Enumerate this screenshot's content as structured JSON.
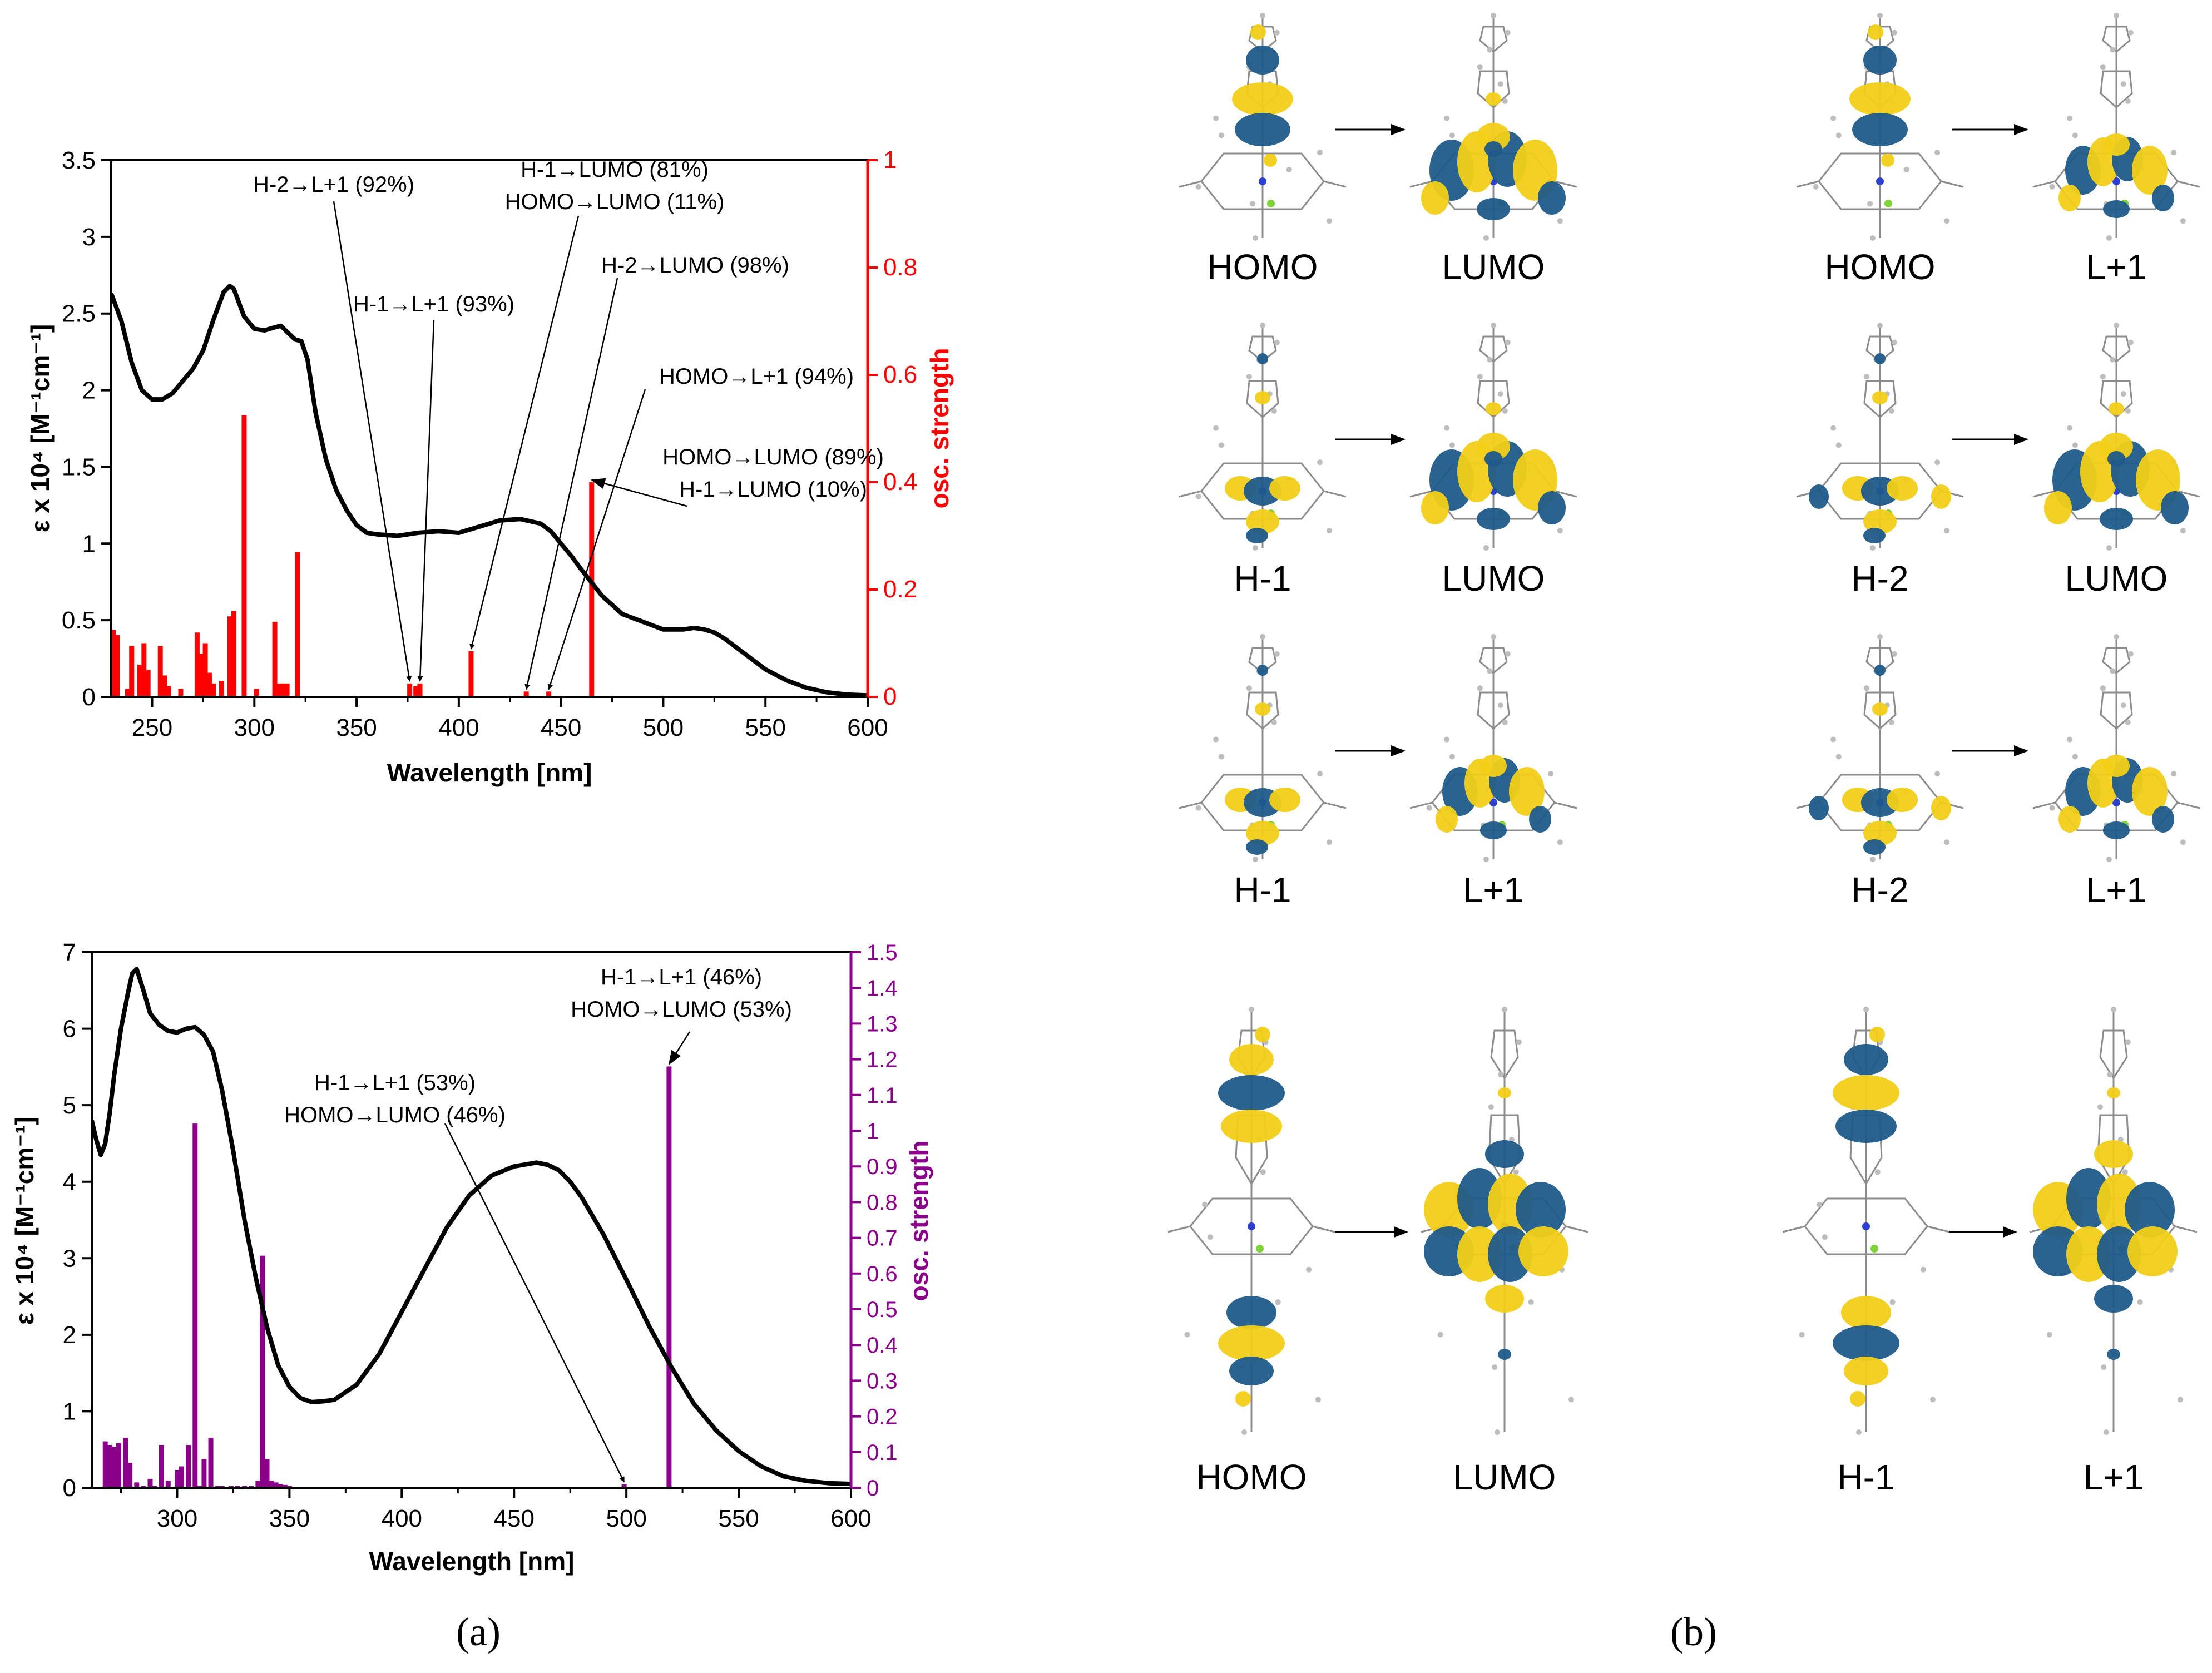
{
  "colors": {
    "absorbance": "#000000",
    "top_osc": "#ff0000",
    "bottom_osc": "#8b008b",
    "orbital_blue": "#1f5a8a",
    "orbital_yellow": "#f2cf18",
    "atom_grey": "#8c8c8c"
  },
  "chart_data": [
    {
      "type": "line",
      "panel": "top",
      "xlabel": "Wavelength [nm]",
      "ylabel": "ε x 10⁴ [M⁻¹cm⁻¹]",
      "y2label": "osc. strength",
      "xlim": [
        230,
        600
      ],
      "ylim": [
        0,
        3.5
      ],
      "y2lim": [
        0,
        1
      ],
      "xticks": [
        250,
        300,
        350,
        400,
        450,
        500,
        550,
        600
      ],
      "yticks": [
        "0",
        "0.5",
        "1",
        "1.5",
        "2",
        "2.5",
        "3",
        "3.5"
      ],
      "y2ticks": [
        "0",
        "0.2",
        "0.4",
        "0.6",
        "0.8",
        "1"
      ],
      "absorbance": {
        "x": [
          230,
          235,
          240,
          245,
          250,
          255,
          260,
          265,
          270,
          275,
          280,
          285,
          288,
          290,
          295,
          300,
          305,
          310,
          313,
          316,
          320,
          323,
          326,
          330,
          335,
          340,
          345,
          350,
          355,
          360,
          370,
          380,
          390,
          400,
          410,
          420,
          430,
          440,
          445,
          450,
          455,
          460,
          470,
          480,
          490,
          500,
          510,
          515,
          520,
          525,
          530,
          540,
          550,
          560,
          570,
          580,
          590,
          600
        ],
        "y": [
          2.63,
          2.45,
          2.18,
          2.0,
          1.94,
          1.94,
          1.98,
          2.06,
          2.14,
          2.26,
          2.46,
          2.64,
          2.68,
          2.66,
          2.48,
          2.4,
          2.39,
          2.41,
          2.42,
          2.38,
          2.33,
          2.32,
          2.2,
          1.85,
          1.55,
          1.35,
          1.22,
          1.12,
          1.07,
          1.06,
          1.05,
          1.07,
          1.08,
          1.07,
          1.11,
          1.15,
          1.16,
          1.13,
          1.08,
          1.0,
          0.92,
          0.83,
          0.66,
          0.54,
          0.49,
          0.44,
          0.44,
          0.45,
          0.44,
          0.42,
          0.38,
          0.28,
          0.18,
          0.11,
          0.06,
          0.03,
          0.015,
          0.01
        ]
      },
      "oscillator": {
        "x": [
          231,
          233,
          238,
          240,
          244,
          246,
          248,
          254,
          256,
          258,
          264,
          272,
          274,
          276,
          278,
          280,
          284,
          288,
          290,
          295,
          301,
          310,
          312,
          314,
          316,
          321,
          376,
          379,
          381,
          406,
          433,
          444,
          465
        ],
        "y": [
          0.125,
          0.115,
          0.015,
          0.095,
          0.06,
          0.1,
          0.05,
          0.095,
          0.04,
          0.02,
          0.015,
          0.12,
          0.08,
          0.1,
          0.045,
          0.025,
          0.03,
          0.15,
          0.16,
          0.525,
          0.015,
          0.14,
          0.025,
          0.025,
          0.025,
          0.27,
          0.025,
          0.02,
          0.025,
          0.085,
          0.01,
          0.01,
          0.4
        ]
      },
      "annotations": [
        {
          "lines": [
            "H-2→L+1 (92%)"
          ],
          "target_x": 376,
          "target_y": 0.025
        },
        {
          "lines": [
            "H-1→L+1 (93%)"
          ],
          "target_x": 381,
          "target_y": 0.025
        },
        {
          "lines": [
            "H-1→LUMO (81%)",
            "HOMO→LUMO (11%)"
          ],
          "target_x": 406,
          "target_y": 0.085
        },
        {
          "lines": [
            "H-2→LUMO (98%)"
          ],
          "target_x": 433,
          "target_y": 0.01
        },
        {
          "lines": [
            "HOMO→L+1 (94%)"
          ],
          "target_x": 444,
          "target_y": 0.01
        },
        {
          "lines": [
            "HOMO→LUMO (89%)",
            "H-1→LUMO (10%)"
          ],
          "target_x": 465,
          "target_y": 0.4
        }
      ]
    },
    {
      "type": "line",
      "panel": "bottom",
      "xlabel": "Wavelength [nm]",
      "ylabel": "ε x 10⁴ [M⁻¹cm⁻¹]",
      "y2label": "osc. strength",
      "xlim": [
        262,
        600
      ],
      "ylim": [
        0,
        7
      ],
      "y2lim": [
        0,
        1.5
      ],
      "xticks": [
        300,
        350,
        400,
        450,
        500,
        550,
        600
      ],
      "yticks": [
        "0",
        "1",
        "2",
        "3",
        "4",
        "5",
        "6",
        "7"
      ],
      "y2ticks": [
        "0",
        "0.1",
        "0.2",
        "0.3",
        "0.4",
        "0.5",
        "0.6",
        "0.7",
        "0.8",
        "0.9",
        "1",
        "1.1",
        "1.2",
        "1.3",
        "1.4",
        "1.5"
      ],
      "absorbance": {
        "x": [
          262,
          264,
          266,
          268,
          270,
          272,
          275,
          278,
          280,
          282,
          285,
          288,
          292,
          296,
          300,
          304,
          308,
          312,
          316,
          320,
          325,
          330,
          335,
          340,
          345,
          350,
          355,
          360,
          365,
          370,
          380,
          390,
          400,
          410,
          420,
          430,
          440,
          450,
          460,
          465,
          470,
          475,
          480,
          490,
          500,
          510,
          520,
          530,
          540,
          550,
          560,
          570,
          580,
          590,
          600
        ],
        "y": [
          4.8,
          4.55,
          4.35,
          4.5,
          4.9,
          5.4,
          6.0,
          6.45,
          6.72,
          6.78,
          6.5,
          6.2,
          6.05,
          5.97,
          5.95,
          6.0,
          6.02,
          5.92,
          5.7,
          5.2,
          4.4,
          3.5,
          2.75,
          2.1,
          1.6,
          1.32,
          1.17,
          1.12,
          1.13,
          1.15,
          1.35,
          1.75,
          2.3,
          2.85,
          3.4,
          3.82,
          4.08,
          4.2,
          4.25,
          4.22,
          4.15,
          4.0,
          3.8,
          3.3,
          2.72,
          2.12,
          1.58,
          1.1,
          0.75,
          0.48,
          0.28,
          0.15,
          0.09,
          0.06,
          0.05
        ]
      },
      "oscillator": {
        "x": [
          268,
          270,
          272,
          274,
          277,
          279,
          282,
          285,
          288,
          290,
          293,
          296,
          300,
          302,
          305,
          308,
          310,
          312,
          315,
          318,
          320,
          324,
          327,
          330,
          333,
          336,
          338,
          340,
          342,
          344,
          346,
          348,
          350,
          499,
          519
        ],
        "y": [
          0.13,
          0.12,
          0.115,
          0.125,
          0.14,
          0.07,
          0.015,
          0.005,
          0.025,
          0.005,
          0.12,
          0.02,
          0.05,
          0.06,
          0.12,
          1.02,
          0.005,
          0.08,
          0.14,
          0.005,
          0.005,
          0.005,
          0.005,
          0.005,
          0.005,
          0.02,
          0.65,
          0.08,
          0.02,
          0.015,
          0.01,
          0.008,
          0.005,
          0.01,
          1.18
        ]
      },
      "annotations": [
        {
          "lines": [
            "H-1→L+1 (46%)",
            "HOMO→LUMO (53%)"
          ],
          "target_x": 519,
          "target_y": 1.18
        },
        {
          "lines": [
            "H-1→L+1 (53%)",
            "HOMO→LUMO (46%)"
          ],
          "target_x": 499,
          "target_y": 0.01
        }
      ]
    }
  ],
  "orbital_transitions": [
    {
      "from": "HOMO",
      "to": "LUMO"
    },
    {
      "from": "HOMO",
      "to": "L+1"
    },
    {
      "from": "H-1",
      "to": "LUMO"
    },
    {
      "from": "H-2",
      "to": "LUMO"
    },
    {
      "from": "H-1",
      "to": "L+1"
    },
    {
      "from": "H-2",
      "to": "L+1"
    },
    {
      "from": "HOMO",
      "to": "LUMO"
    },
    {
      "from": "H-1",
      "to": "L+1"
    }
  ],
  "panel_labels": {
    "a": "(a)",
    "b": "(b)"
  }
}
